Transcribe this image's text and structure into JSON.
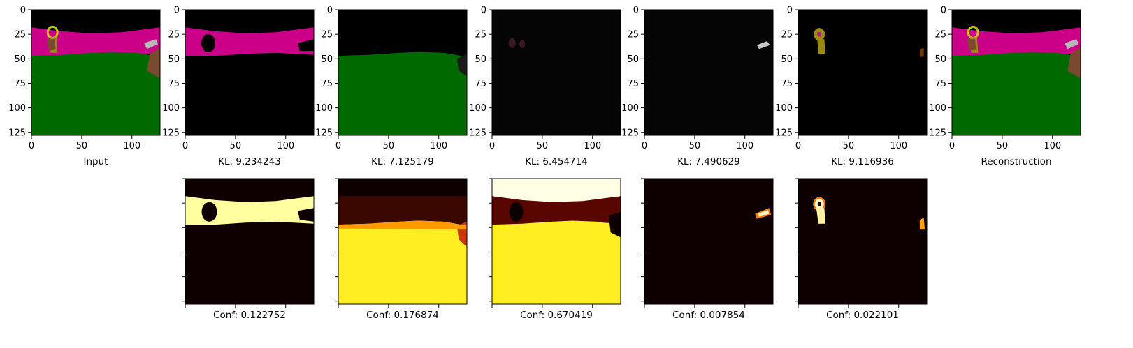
{
  "top_row": [
    {
      "caption": "Input",
      "kind": "input"
    },
    {
      "caption": "KL: 9.234243",
      "kind": "slot_sky"
    },
    {
      "caption": "KL: 7.125179",
      "kind": "slot_ground"
    },
    {
      "caption": "KL: 6.454714",
      "kind": "slot_dark"
    },
    {
      "caption": "KL: 7.490629",
      "kind": "slot_gun"
    },
    {
      "caption": "KL: 9.116936",
      "kind": "slot_key"
    },
    {
      "caption": "Reconstruction",
      "kind": "input"
    }
  ],
  "bottom_row": [
    {
      "caption": "Conf: 0.122752",
      "kind": "conf_sky"
    },
    {
      "caption": "Conf: 0.176874",
      "kind": "conf_ground"
    },
    {
      "caption": "Conf: 0.670419",
      "kind": "conf_ground2"
    },
    {
      "caption": "Conf: 0.007854",
      "kind": "conf_gun"
    },
    {
      "caption": "Conf: 0.022101",
      "kind": "conf_key"
    }
  ],
  "axes": {
    "x_ticks": [
      "0",
      "50",
      "100"
    ],
    "y_ticks": [
      "0",
      "25",
      "50",
      "75",
      "100",
      "125"
    ],
    "x_tick_values": [
      0,
      50,
      100
    ],
    "y_tick_values": [
      0,
      25,
      50,
      75,
      100,
      125
    ],
    "extent": 128
  },
  "colors": {
    "sky": "#cc0088",
    "ground": "#006a00",
    "black": "#000000",
    "heat_dark": "#0e0000",
    "heat_mid": "#c83800",
    "heat_bright": "#ffffa0",
    "heat_yellow": "#ffee22",
    "key_yellow": "#9a8a10",
    "gun_grey": "#b8b8b8"
  }
}
